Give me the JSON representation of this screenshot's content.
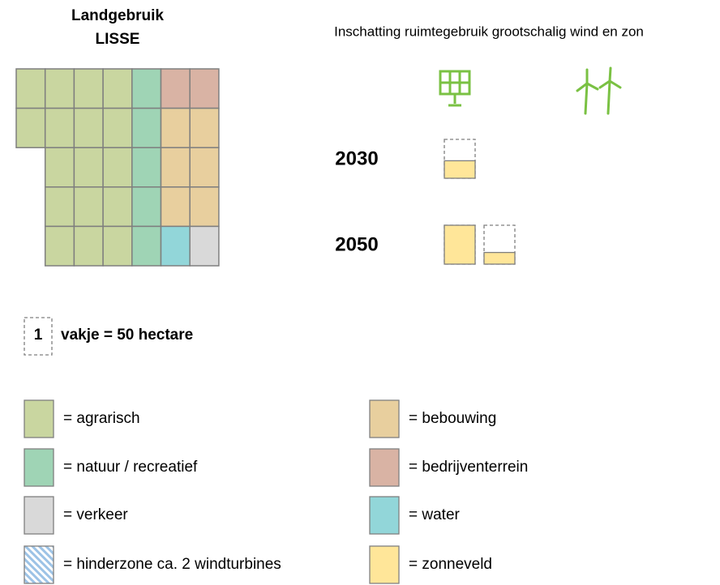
{
  "header": {
    "title": "Landgebruik",
    "subtitle": "LISSE",
    "heading": "Inschatting ruimtegebruik grootschalig wind en zon"
  },
  "grid": {
    "rows": [
      [
        0,
        0,
        0,
        0,
        1,
        5,
        5
      ],
      [
        0,
        0,
        0,
        0,
        1,
        4,
        4
      ],
      [
        null,
        0,
        0,
        0,
        1,
        4,
        4
      ],
      [
        null,
        0,
        0,
        0,
        1,
        4,
        4
      ],
      [
        null,
        0,
        0,
        0,
        1,
        6,
        2
      ]
    ]
  },
  "scenarios": [
    {
      "year": "2030",
      "fills": [
        0.45
      ]
    },
    {
      "year": "2050",
      "fills": [
        1,
        0.3
      ]
    }
  ],
  "fill_color": "#ffe699",
  "scale": {
    "count": "1",
    "text": "vakje = 50 hectare"
  },
  "legend": [
    {
      "label": "= agrarisch",
      "color": "#c9d6a0"
    },
    {
      "label": "= natuur  / recreatief",
      "color": "#9fd4b5"
    },
    {
      "label": "= verkeer",
      "color": "#d9d9d9"
    },
    {
      "label": "= hinderzone  ca. 2 windturbines",
      "color": "#9dc3e6",
      "pattern": "hatch"
    },
    {
      "label": "= bebouwing",
      "color": "#e8cf9e"
    },
    {
      "label": "= bedrijventerrein",
      "color": "#d9b3a4"
    },
    {
      "label": "= water",
      "color": "#92d6d9"
    },
    {
      "label": "= zonneveld",
      "color": "#ffe699"
    }
  ]
}
